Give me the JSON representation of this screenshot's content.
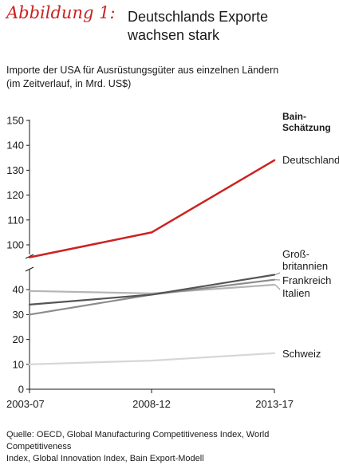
{
  "header": {
    "figure_label": "Abbildung 1:",
    "title_line1": "Deutschlands Exporte",
    "title_line2": "wachsen stark"
  },
  "subtitle_line1": "Importe der USA für Ausrüstungsgüter aus einzelnen Ländern",
  "subtitle_line2": "(im Zeitverlauf, in Mrd. US$)",
  "source_line1": "Quelle: OECD, Global Manufacturing Competitiveness Index, World Competitiveness",
  "source_line2": "Index, Global Innovation Index, Bain Export-Modell",
  "colors": {
    "accent": "#cc2222",
    "axis": "#1a1a1a"
  },
  "chart_data": {
    "type": "line",
    "x": [
      "2003-07",
      "2008-12",
      "2013-17"
    ],
    "estimate_label_line1": "Bain-",
    "estimate_label_line2": "Schätzung",
    "axis_break": true,
    "y_ticks_lower": [
      0,
      10,
      20,
      30,
      40
    ],
    "y_ticks_upper": [
      100,
      110,
      120,
      130,
      140,
      150
    ],
    "series": [
      {
        "name": "Deutschland",
        "values": [
          95,
          105,
          134
        ],
        "color": "#cc2222",
        "label_lines": [
          "Deutschland"
        ]
      },
      {
        "name": "Großbritannien",
        "values": [
          34,
          38,
          46
        ],
        "color": "#555555",
        "label_lines": [
          "Groß-",
          "britannien"
        ]
      },
      {
        "name": "Frankreich",
        "values": [
          30,
          38,
          44
        ],
        "color": "#8c8c8c",
        "label_lines": [
          "Frankreich"
        ]
      },
      {
        "name": "Italien",
        "values": [
          39.5,
          38.5,
          42
        ],
        "color": "#b5b5b5",
        "label_lines": [
          "Italien"
        ]
      },
      {
        "name": "Schweiz",
        "values": [
          10,
          11.5,
          14.5
        ],
        "color": "#d6d6d6",
        "label_lines": [
          "Schweiz"
        ]
      }
    ]
  }
}
